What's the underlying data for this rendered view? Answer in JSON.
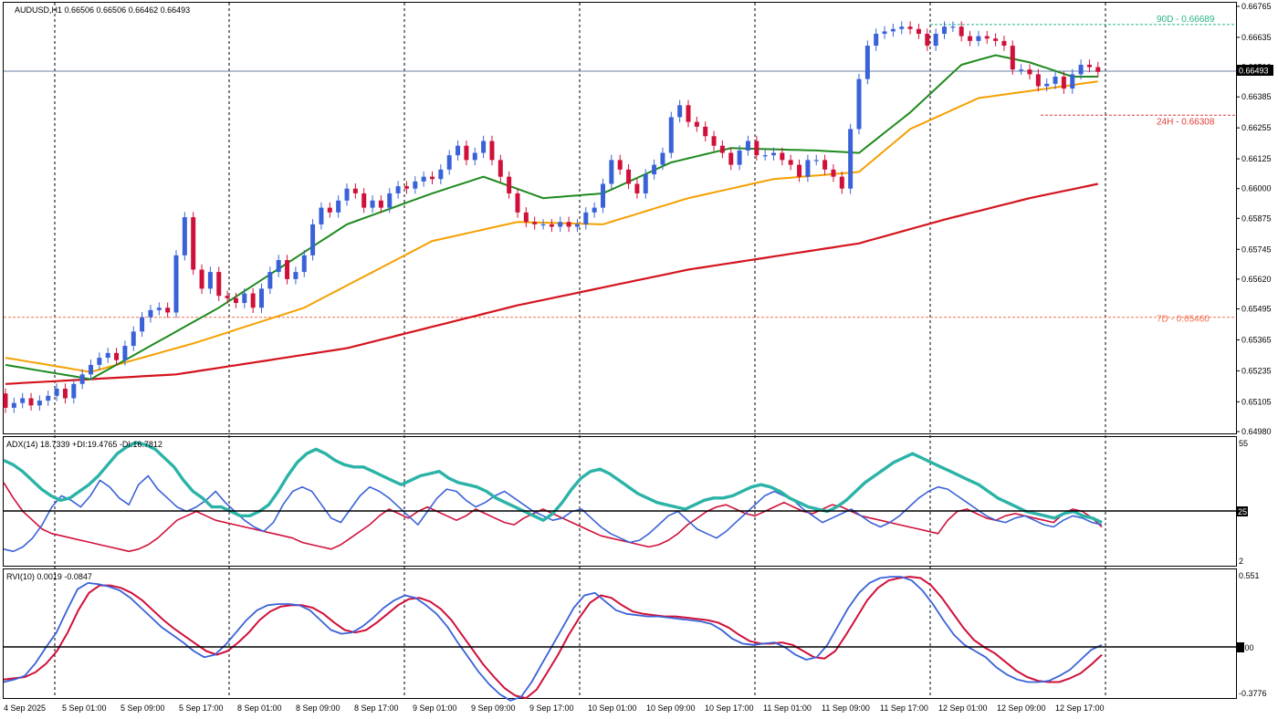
{
  "symbol_header": "AUDUSD,H1  0.66506 0.66506 0.66462 0.66493",
  "colors": {
    "bull": "#3a62d8",
    "bear": "#d0103a",
    "ma_fast": "#1e8a1e",
    "ma_mid": "#f5a000",
    "ma_slow": "#d4141e",
    "adx": "#2ab3a6",
    "plus_di": "#3a62d8",
    "minus_di": "#d0103a",
    "grid": "#000000",
    "level_90d": "#2ab38a",
    "level_24h": "#e23b3b",
    "level_7d": "#f07050",
    "price_line": "#6a7fa8"
  },
  "price_axis_labels": [
    "0.66765",
    "0.66635",
    "0.66510",
    "0.66385",
    "0.66255",
    "0.66125",
    "0.66000",
    "0.65875",
    "0.65745",
    "0.65620",
    "0.65495",
    "0.65365",
    "0.65235",
    "0.65105",
    "0.64980"
  ],
  "current_price_label": "0.66493",
  "levels": [
    {
      "label": "90D - 0.66689",
      "value": 0.66689,
      "color_key": "level_90d"
    },
    {
      "label": "24H - 0.66308",
      "value": 0.66308,
      "color_key": "level_24h"
    },
    {
      "label": "7D - 0.65460",
      "value": 0.6546,
      "color_key": "level_7d"
    }
  ],
  "adx_header": "ADX(14) 18.7339 +DI:19.4765 -DI:16.7812",
  "adx_axis_labels": [
    "55",
    "25",
    "2"
  ],
  "rvi_header": "RVI(10) 0.0019 -0.0847",
  "rvi_axis_labels": [
    "0.551",
    "0.00",
    "-0.3776"
  ],
  "time_labels": [
    "4 Sep 2025",
    "5 Sep 01:00",
    "5 Sep 09:00",
    "5 Sep 17:00",
    "8 Sep 01:00",
    "8 Sep 09:00",
    "8 Sep 17:00",
    "9 Sep 01:00",
    "9 Sep 09:00",
    "9 Sep 17:00",
    "10 Sep 01:00",
    "10 Sep 09:00",
    "10 Sep 17:00",
    "11 Sep 01:00",
    "11 Sep 09:00",
    "11 Sep 17:00",
    "12 Sep 01:00",
    "12 Sep 09:00",
    "12 Sep 17:00"
  ],
  "chart_data": {
    "type": "candlestick",
    "candle_closes": [
      0.6508,
      0.651,
      0.6512,
      0.6509,
      0.6511,
      0.6513,
      0.6516,
      0.6512,
      0.6518,
      0.6522,
      0.6526,
      0.6529,
      0.6531,
      0.6528,
      0.6534,
      0.654,
      0.6546,
      0.6549,
      0.655,
      0.6548,
      0.6572,
      0.6588,
      0.6566,
      0.6558,
      0.6565,
      0.6555,
      0.6554,
      0.6552,
      0.6556,
      0.655,
      0.6558,
      0.6565,
      0.657,
      0.6562,
      0.6565,
      0.6572,
      0.6585,
      0.6592,
      0.659,
      0.6595,
      0.66,
      0.6598,
      0.6592,
      0.6595,
      0.6592,
      0.6598,
      0.6601,
      0.66,
      0.6603,
      0.6605,
      0.6604,
      0.6608,
      0.6614,
      0.6618,
      0.6612,
      0.6615,
      0.662,
      0.6612,
      0.6605,
      0.6598,
      0.659,
      0.6586,
      0.6585,
      0.6585,
      0.6584,
      0.6586,
      0.6584,
      0.6585,
      0.659,
      0.6592,
      0.6602,
      0.6612,
      0.6608,
      0.6602,
      0.6598,
      0.6606,
      0.661,
      0.6615,
      0.663,
      0.6635,
      0.6628,
      0.6626,
      0.6622,
      0.6618,
      0.6615,
      0.661,
      0.6616,
      0.662,
      0.6614,
      0.6614,
      0.6615,
      0.6612,
      0.661,
      0.6605,
      0.6612,
      0.6612,
      0.6608,
      0.6605,
      0.66,
      0.6625,
      0.6646,
      0.666,
      0.6665,
      0.6666,
      0.6667,
      0.6668,
      0.6667,
      0.6665,
      0.666,
      0.6665,
      0.6668,
      0.6668,
      0.6664,
      0.6662,
      0.6664,
      0.6663,
      0.6662,
      0.666,
      0.665,
      0.665,
      0.6648,
      0.6643,
      0.6644,
      0.6647,
      0.6642,
      0.6648,
      0.6652,
      0.6651,
      0.6649
    ],
    "ma_fast_anchors": [
      [
        0,
        0.6526
      ],
      [
        10,
        0.652
      ],
      [
        25,
        0.655
      ],
      [
        40,
        0.6585
      ],
      [
        50,
        0.6598
      ],
      [
        56,
        0.6605
      ],
      [
        63,
        0.6596
      ],
      [
        70,
        0.6598
      ],
      [
        78,
        0.6611
      ],
      [
        85,
        0.6617
      ],
      [
        95,
        0.6616
      ],
      [
        100,
        0.6615
      ],
      [
        106,
        0.6632
      ],
      [
        112,
        0.6652
      ],
      [
        116,
        0.6656
      ],
      [
        120,
        0.6653
      ],
      [
        125,
        0.6647
      ],
      [
        128,
        0.6647
      ]
    ],
    "ma_mid_anchors": [
      [
        0,
        0.6529
      ],
      [
        10,
        0.6523
      ],
      [
        22,
        0.6535
      ],
      [
        35,
        0.655
      ],
      [
        50,
        0.6578
      ],
      [
        60,
        0.6586
      ],
      [
        70,
        0.6585
      ],
      [
        80,
        0.6596
      ],
      [
        90,
        0.6604
      ],
      [
        100,
        0.6607
      ],
      [
        106,
        0.6625
      ],
      [
        114,
        0.6638
      ],
      [
        120,
        0.6641
      ],
      [
        128,
        0.6645
      ]
    ],
    "ma_slow_anchors": [
      [
        0,
        0.6518
      ],
      [
        20,
        0.6522
      ],
      [
        40,
        0.6533
      ],
      [
        60,
        0.6551
      ],
      [
        80,
        0.6566
      ],
      [
        100,
        0.6577
      ],
      [
        110,
        0.6587
      ],
      [
        120,
        0.6596
      ],
      [
        128,
        0.6602
      ]
    ],
    "adx_values": [
      47,
      45,
      42,
      38,
      34,
      31,
      29,
      30,
      33,
      36,
      40,
      45,
      50,
      53,
      55,
      54,
      52,
      48,
      44,
      38,
      33,
      30,
      26,
      26,
      24,
      22,
      22,
      24,
      27,
      33,
      40,
      46,
      50,
      52,
      50,
      47,
      45,
      44,
      44,
      42,
      40,
      38,
      36,
      38,
      40,
      41,
      42,
      39,
      37,
      36,
      35,
      33,
      30,
      28,
      26,
      24,
      22,
      20,
      23,
      28,
      34,
      39,
      42,
      43,
      41,
      38,
      35,
      32,
      30,
      28,
      27,
      26,
      25,
      27,
      29,
      30,
      30,
      31,
      33,
      35,
      36,
      35,
      33,
      30,
      28,
      26,
      25,
      24,
      26,
      29,
      33,
      37,
      40,
      43,
      46,
      48,
      50,
      48,
      46,
      44,
      42,
      40,
      38,
      36,
      33,
      30,
      28,
      26,
      24,
      23,
      22,
      21,
      23,
      24,
      22,
      21,
      19
    ],
    "plus_di_values": [
      7,
      6,
      8,
      12,
      18,
      26,
      31,
      29,
      26,
      31,
      38,
      35,
      30,
      27,
      36,
      40,
      34,
      30,
      26,
      24,
      26,
      29,
      33,
      28,
      24,
      20,
      17,
      15,
      19,
      27,
      33,
      35,
      33,
      27,
      21,
      19,
      25,
      31,
      35,
      33,
      30,
      26,
      22,
      18,
      24,
      30,
      34,
      33,
      29,
      26,
      28,
      31,
      33,
      30,
      27,
      24,
      22,
      20,
      21,
      24,
      25,
      21,
      17,
      14,
      12,
      10,
      11,
      14,
      18,
      22,
      24,
      20,
      16,
      14,
      12,
      15,
      19,
      23,
      27,
      31,
      33,
      31,
      29,
      25,
      22,
      19,
      21,
      23,
      25,
      22,
      19,
      17,
      19,
      22,
      26,
      30,
      33,
      35,
      34,
      31,
      28,
      25,
      22,
      20,
      19,
      21,
      22,
      20,
      18,
      17,
      20,
      22,
      21,
      19,
      18
    ],
    "minus_di_values": [
      37,
      30,
      24,
      20,
      16,
      14,
      13,
      12,
      11,
      10,
      9,
      8,
      7,
      6,
      7,
      9,
      12,
      16,
      20,
      22,
      24,
      22,
      20,
      19,
      18,
      17,
      16,
      15,
      14,
      13,
      12,
      10,
      9,
      8,
      7,
      9,
      12,
      15,
      18,
      22,
      25,
      23,
      21,
      24,
      26,
      24,
      22,
      20,
      22,
      25,
      23,
      21,
      19,
      18,
      21,
      23,
      25,
      23,
      21,
      19,
      17,
      15,
      13,
      12,
      11,
      10,
      9,
      8,
      9,
      11,
      14,
      18,
      21,
      24,
      26,
      27,
      25,
      23,
      22,
      24,
      26,
      28,
      26,
      24,
      23,
      25,
      27,
      26,
      24,
      22,
      21,
      20,
      19,
      18,
      17,
      16,
      15,
      14,
      20,
      24,
      25,
      23,
      21,
      20,
      22,
      23,
      22,
      21,
      20,
      19,
      23,
      25,
      24,
      21,
      17
    ],
    "rvi_values": [
      -0.3,
      -0.28,
      -0.25,
      -0.15,
      -0.02,
      0.1,
      0.28,
      0.45,
      0.5,
      0.49,
      0.47,
      0.44,
      0.38,
      0.3,
      0.22,
      0.14,
      0.08,
      0.02,
      -0.05,
      -0.1,
      -0.08,
      0.0,
      0.1,
      0.2,
      0.28,
      0.32,
      0.33,
      0.33,
      0.32,
      0.28,
      0.2,
      0.12,
      0.09,
      0.1,
      0.15,
      0.22,
      0.3,
      0.36,
      0.4,
      0.38,
      0.32,
      0.25,
      0.15,
      0.02,
      -0.1,
      -0.22,
      -0.32,
      -0.4,
      -0.45,
      -0.42,
      -0.3,
      -0.15,
      0.0,
      0.15,
      0.3,
      0.4,
      0.42,
      0.35,
      0.28,
      0.25,
      0.24,
      0.23,
      0.23,
      0.22,
      0.21,
      0.2,
      0.19,
      0.17,
      0.12,
      0.05,
      0.01,
      0.0,
      0.01,
      0.02,
      -0.02,
      -0.08,
      -0.12,
      -0.1,
      0.0,
      0.15,
      0.3,
      0.42,
      0.5,
      0.54,
      0.55,
      0.55,
      0.52,
      0.44,
      0.33,
      0.2,
      0.08,
      0.0,
      -0.05,
      -0.1,
      -0.18,
      -0.24,
      -0.28,
      -0.3,
      -0.3,
      -0.29,
      -0.25,
      -0.2,
      -0.12,
      -0.04,
      0.0
    ],
    "rvi_signal_values": [
      -0.28,
      -0.27,
      -0.26,
      -0.22,
      -0.15,
      -0.05,
      0.1,
      0.28,
      0.42,
      0.48,
      0.48,
      0.46,
      0.42,
      0.36,
      0.28,
      0.2,
      0.13,
      0.07,
      0.01,
      -0.05,
      -0.08,
      -0.05,
      0.02,
      0.1,
      0.2,
      0.27,
      0.31,
      0.32,
      0.32,
      0.3,
      0.25,
      0.18,
      0.12,
      0.1,
      0.12,
      0.18,
      0.25,
      0.32,
      0.37,
      0.38,
      0.35,
      0.29,
      0.2,
      0.08,
      -0.04,
      -0.16,
      -0.26,
      -0.35,
      -0.41,
      -0.43,
      -0.36,
      -0.22,
      -0.08,
      0.08,
      0.22,
      0.34,
      0.4,
      0.38,
      0.32,
      0.27,
      0.25,
      0.24,
      0.23,
      0.23,
      0.22,
      0.21,
      0.2,
      0.18,
      0.14,
      0.08,
      0.03,
      0.01,
      0.01,
      0.02,
      0.0,
      -0.05,
      -0.1,
      -0.11,
      -0.05,
      0.08,
      0.22,
      0.36,
      0.46,
      0.52,
      0.54,
      0.55,
      0.54,
      0.48,
      0.38,
      0.26,
      0.14,
      0.04,
      -0.02,
      -0.07,
      -0.14,
      -0.21,
      -0.26,
      -0.29,
      -0.3,
      -0.3,
      -0.27,
      -0.23,
      -0.16,
      -0.08
    ]
  }
}
